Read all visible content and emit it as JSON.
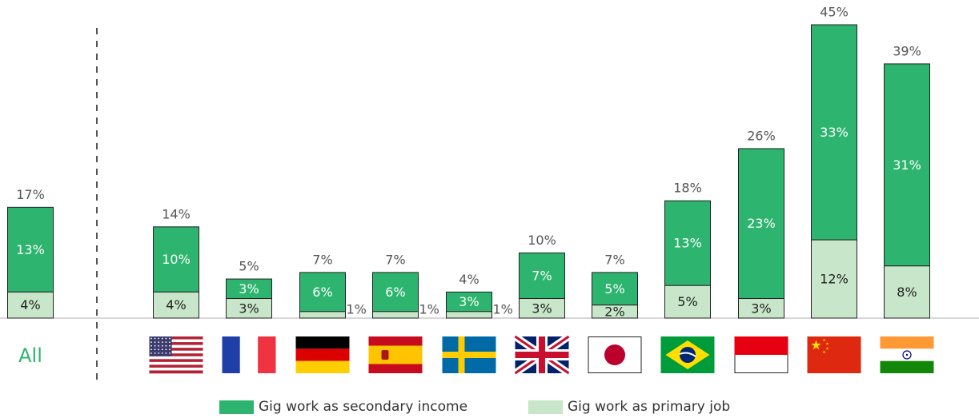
{
  "chart_data": {
    "type": "bar",
    "stacked": true,
    "categories": [
      "All",
      "USA",
      "France",
      "Germany",
      "Spain",
      "Sweden",
      "UK",
      "Japan",
      "Brazil",
      "Indonesia",
      "China",
      "India"
    ],
    "category_icons": [
      "",
      "flag-usa-icon",
      "flag-france-icon",
      "flag-germany-icon",
      "flag-spain-icon",
      "flag-sweden-icon",
      "flag-uk-icon",
      "flag-japan-icon",
      "flag-brazil-icon",
      "flag-indonesia-icon",
      "flag-china-icon",
      "flag-india-icon"
    ],
    "series": [
      {
        "name": "Gig work as primary job",
        "color": "#c8e6c9",
        "values": [
          4,
          4,
          3,
          1,
          1,
          1,
          3,
          2,
          5,
          3,
          12,
          8
        ],
        "labels": [
          "4%",
          "4%",
          "3%",
          "1%",
          "1%",
          "1%",
          "3%",
          "2%",
          "5%",
          "3%",
          "12%",
          "8%"
        ]
      },
      {
        "name": "Gig work as secondary income",
        "color": "#2db46e",
        "values": [
          13,
          10,
          3,
          6,
          6,
          3,
          7,
          5,
          13,
          23,
          33,
          31
        ],
        "labels": [
          "13%",
          "10%",
          "3%",
          "6%",
          "6%",
          "3%",
          "7%",
          "5%",
          "13%",
          "23%",
          "33%",
          "31%"
        ]
      }
    ],
    "totals": [
      17,
      14,
      5,
      7,
      7,
      4,
      10,
      7,
      18,
      26,
      45,
      39
    ],
    "total_labels": [
      "17%",
      "14%",
      "5%",
      "7%",
      "7%",
      "4%",
      "10%",
      "7%",
      "18%",
      "26%",
      "45%",
      "39%"
    ],
    "all_label": "All",
    "legend": [
      "Gig work as secondary income",
      "Gig work as primary job"
    ],
    "legend_position": "bottom",
    "ylim": [
      0,
      45
    ],
    "grid": false,
    "divider_after": "All"
  }
}
